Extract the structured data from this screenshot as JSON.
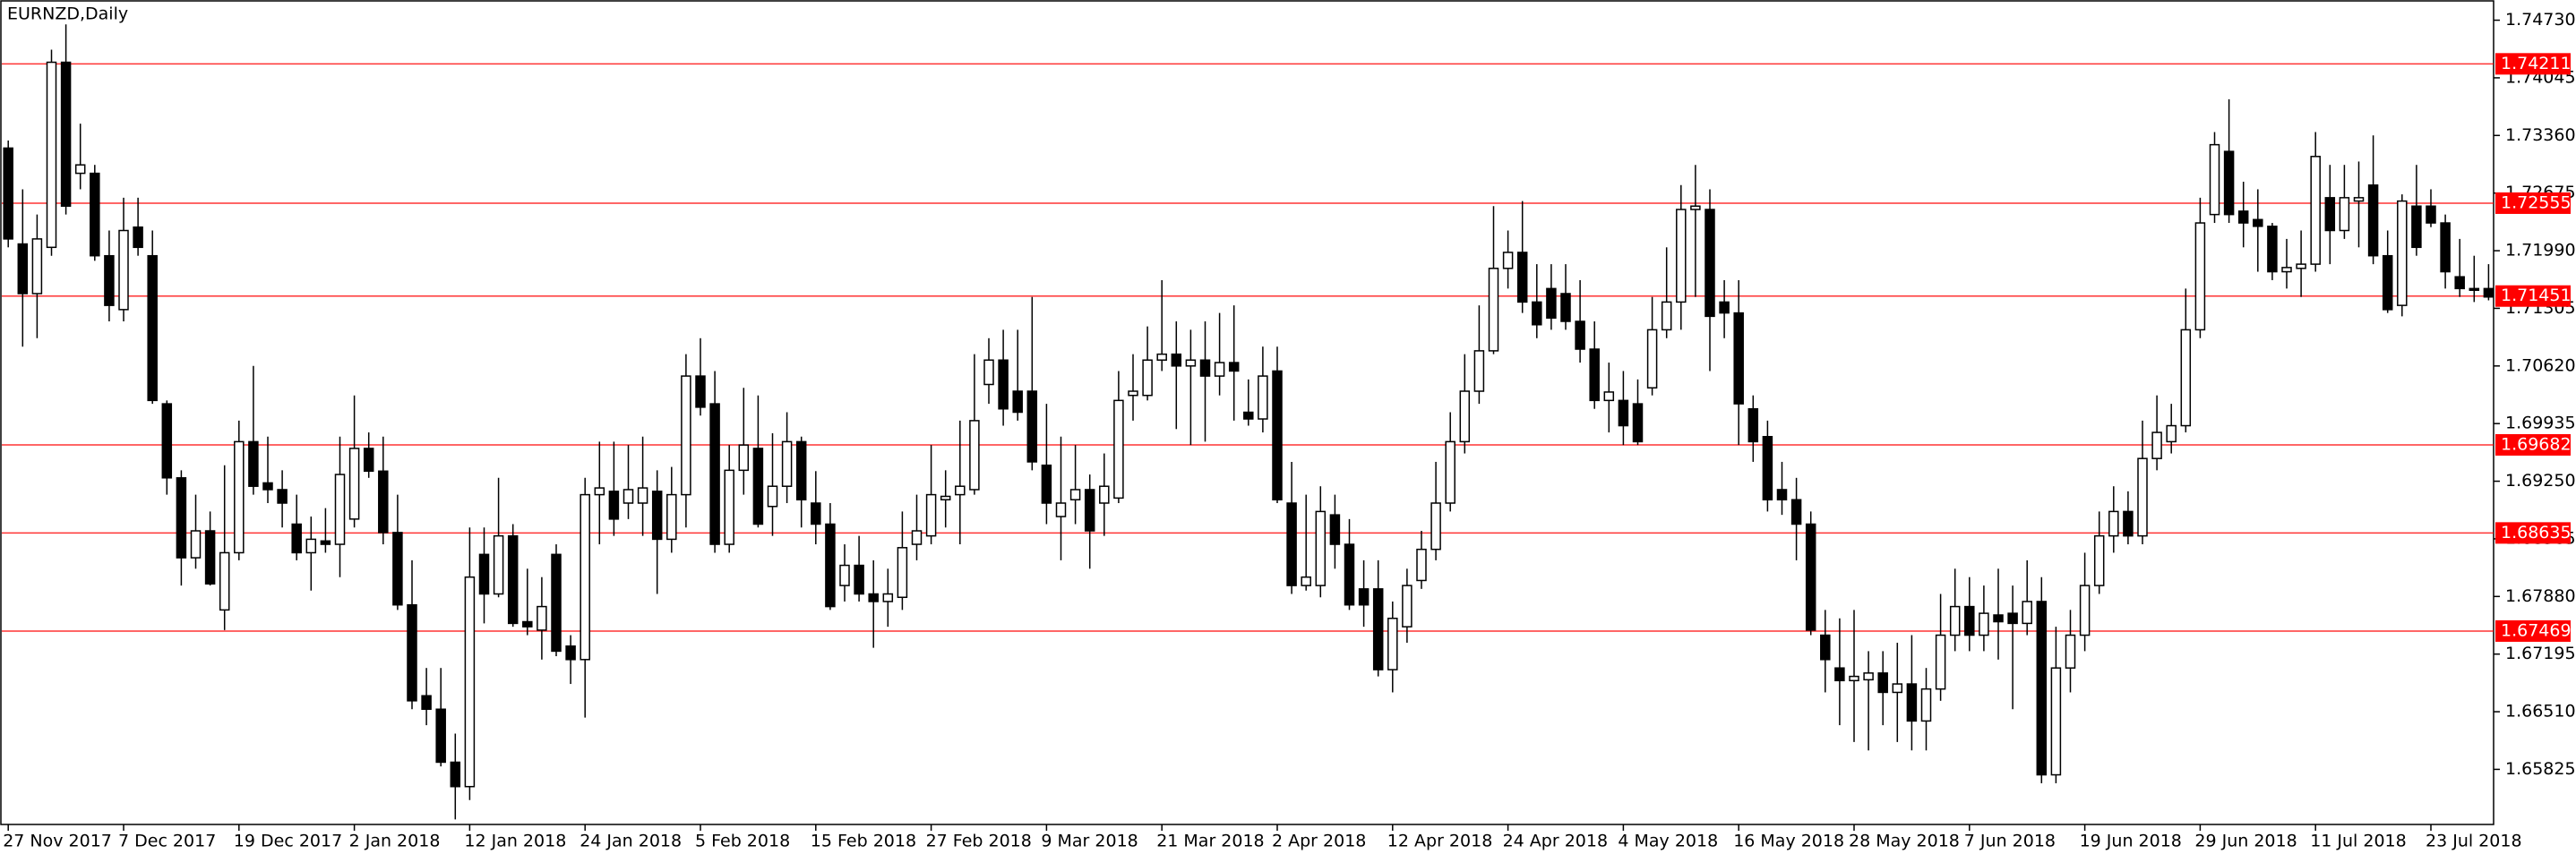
{
  "chart_data": {
    "type": "candlestick",
    "title": "EURNZD,Daily",
    "categories": [
      "27 Nov 2017",
      null,
      null,
      null,
      null,
      null,
      null,
      null,
      "7 Dec 2017",
      null,
      null,
      null,
      null,
      null,
      null,
      null,
      "19 Dec 2017",
      null,
      null,
      null,
      null,
      null,
      null,
      null,
      "2 Jan 2018",
      null,
      null,
      null,
      null,
      null,
      null,
      null,
      "12 Jan 2018",
      null,
      null,
      null,
      null,
      null,
      null,
      null,
      "24 Jan 2018",
      null,
      null,
      null,
      null,
      null,
      null,
      null,
      "5 Feb 2018",
      null,
      null,
      null,
      null,
      null,
      null,
      null,
      "15 Feb 2018",
      null,
      null,
      null,
      null,
      null,
      null,
      null,
      "27 Feb 2018",
      null,
      null,
      null,
      null,
      null,
      null,
      null,
      "9 Mar 2018",
      null,
      null,
      null,
      null,
      null,
      null,
      null,
      "21 Mar 2018",
      null,
      null,
      null,
      null,
      null,
      null,
      null,
      "2 Apr 2018",
      null,
      null,
      null,
      null,
      null,
      null,
      null,
      "12 Apr 2018",
      null,
      null,
      null,
      null,
      null,
      null,
      null,
      "24 Apr 2018",
      null,
      null,
      null,
      null,
      null,
      null,
      null,
      "4 May 2018",
      null,
      null,
      null,
      null,
      null,
      null,
      null,
      "16 May 2018",
      null,
      null,
      null,
      null,
      null,
      null,
      null,
      "28 May 2018",
      null,
      null,
      null,
      null,
      null,
      null,
      null,
      "7 Jun 2018",
      null,
      null,
      null,
      null,
      null,
      null,
      null,
      "19 Jun 2018",
      null,
      null,
      null,
      null,
      null,
      null,
      null,
      "29 Jun 2018",
      null,
      null,
      null,
      null,
      null,
      null,
      null,
      "11 Jul 2018",
      null,
      null,
      null,
      null,
      null,
      null,
      null,
      "23 Jul 2018",
      null,
      null,
      null,
      null
    ],
    "open": [
      1.7321,
      1.7207,
      1.7148,
      1.7203,
      1.7423,
      1.7291,
      1.7291,
      1.7193,
      1.7129,
      1.7227,
      1.7193,
      1.7017,
      1.6929,
      1.6834,
      1.6866,
      1.6772,
      1.684,
      1.6972,
      1.6923,
      1.6915,
      1.6874,
      1.684,
      1.6854,
      1.685,
      1.688,
      1.6964,
      1.6937,
      1.6864,
      1.6778,
      1.667,
      1.6654,
      1.6591,
      1.6562,
      1.6838,
      1.6791,
      1.686,
      1.6758,
      1.6748,
      1.6838,
      1.6729,
      1.6713,
      1.6909,
      1.6913,
      1.6899,
      1.6899,
      1.6913,
      1.6856,
      1.6909,
      1.705,
      1.7017,
      1.685,
      1.6938,
      1.6964,
      1.6895,
      1.6919,
      1.6972,
      1.6899,
      1.6874,
      1.6801,
      1.6825,
      1.6791,
      1.6782,
      1.6787,
      1.685,
      1.686,
      1.6903,
      1.6909,
      1.6915,
      1.704,
      1.7069,
      1.7032,
      1.7032,
      1.6944,
      1.6883,
      1.6903,
      1.6915,
      1.6899,
      1.6905,
      1.7027,
      1.7027,
      1.7069,
      1.7076,
      1.7062,
      1.7069,
      1.705,
      1.7066,
      1.7007,
      1.6999,
      1.7056,
      1.6899,
      1.6801,
      1.6801,
      1.6885,
      1.685,
      1.6797,
      1.6797,
      1.6701,
      1.6752,
      1.6807,
      1.6844,
      1.6899,
      1.6972,
      1.7032,
      1.708,
      1.7178,
      1.7197,
      1.7138,
      1.7154,
      1.7148,
      1.7115,
      1.7082,
      1.7021,
      1.7021,
      1.7017,
      1.7036,
      1.7105,
      1.7138,
      1.7248,
      1.7248,
      1.7138,
      1.7125,
      1.7011,
      1.6978,
      1.6915,
      1.6903,
      1.6874,
      1.6742,
      1.6703,
      1.6688,
      1.6689,
      1.6697,
      1.6674,
      1.6684,
      1.664,
      1.6678,
      1.6742,
      1.6776,
      1.6742,
      1.6766,
      1.6768,
      1.6756,
      1.6782,
      1.6576,
      1.6703,
      1.6742,
      1.6801,
      1.686,
      1.6889,
      1.686,
      1.6952,
      1.6972,
      1.6991,
      1.7105,
      1.7242,
      1.7317,
      1.7246,
      1.7236,
      1.7228,
      1.7174,
      1.7178,
      1.7183,
      1.7262,
      1.7223,
      1.7258,
      1.7277,
      1.7193,
      1.7134,
      1.7252,
      1.7252,
      1.7232,
      1.7168,
      1.7154,
      1.7154
    ],
    "high": [
      1.733,
      1.7272,
      1.7242,
      1.7438,
      1.7468,
      1.735,
      1.7301,
      1.7223,
      1.7262,
      1.7262,
      1.7223,
      1.7021,
      1.6938,
      1.6909,
      1.6889,
      1.6944,
      1.6997,
      1.7062,
      1.6978,
      1.6938,
      1.6909,
      1.6883,
      1.6893,
      1.6978,
      1.7027,
      1.6983,
      1.6978,
      1.6909,
      1.6831,
      1.6703,
      1.6703,
      1.6625,
      1.687,
      1.687,
      1.6929,
      1.6874,
      1.6821,
      1.6811,
      1.685,
      1.6742,
      1.6929,
      1.6972,
      1.6972,
      1.6968,
      1.6978,
      1.6938,
      1.6942,
      1.7076,
      1.7095,
      1.7056,
      1.6968,
      1.7036,
      1.7027,
      1.6982,
      1.7007,
      1.6978,
      1.6937,
      1.6899,
      1.685,
      1.686,
      1.6831,
      1.6821,
      1.6889,
      1.6909,
      1.6968,
      1.6938,
      1.6997,
      1.7076,
      1.7095,
      1.7105,
      1.7105,
      1.7144,
      1.7017,
      1.6978,
      1.6968,
      1.6933,
      1.6958,
      1.7056,
      1.7076,
      1.7109,
      1.7164,
      1.7115,
      1.7105,
      1.7115,
      1.7125,
      1.7134,
      1.7046,
      1.7085,
      1.7085,
      1.6948,
      1.6909,
      1.6919,
      1.6909,
      1.688,
      1.6831,
      1.6831,
      1.6782,
      1.6821,
      1.6866,
      1.6948,
      1.7007,
      1.7076,
      1.7134,
      1.7252,
      1.7223,
      1.7258,
      1.7183,
      1.7183,
      1.7183,
      1.7164,
      1.7115,
      1.7066,
      1.7056,
      1.7046,
      1.7144,
      1.7203,
      1.7277,
      1.7301,
      1.7272,
      1.7164,
      1.7164,
      1.7027,
      1.6997,
      1.6948,
      1.6929,
      1.6889,
      1.6772,
      1.6762,
      1.6772,
      1.6723,
      1.6723,
      1.6733,
      1.6742,
      1.6703,
      1.6791,
      1.6821,
      1.6811,
      1.6801,
      1.6821,
      1.6801,
      1.6831,
      1.6811,
      1.6752,
      1.6772,
      1.684,
      1.6889,
      1.6919,
      1.6913,
      1.6997,
      1.7027,
      1.7017,
      1.7154,
      1.7262,
      1.734,
      1.7379,
      1.7281,
      1.7272,
      1.7232,
      1.7213,
      1.7223,
      1.734,
      1.7301,
      1.7301,
      1.7305,
      1.7336,
      1.7223,
      1.7266,
      1.7301,
      1.7272,
      1.7242,
      1.7213,
      1.7193,
      1.7183
    ],
    "low": [
      1.7203,
      1.7085,
      1.7095,
      1.7193,
      1.7242,
      1.7272,
      1.7187,
      1.7115,
      1.7115,
      1.7193,
      1.7017,
      1.6909,
      1.6801,
      1.6821,
      1.6801,
      1.6748,
      1.6831,
      1.6909,
      1.6899,
      1.687,
      1.6831,
      1.6795,
      1.684,
      1.6811,
      1.687,
      1.6929,
      1.685,
      1.6772,
      1.6654,
      1.6635,
      1.6586,
      1.6523,
      1.6546,
      1.6756,
      1.6787,
      1.6752,
      1.6742,
      1.6713,
      1.6717,
      1.6684,
      1.6644,
      1.685,
      1.686,
      1.688,
      1.686,
      1.6791,
      1.684,
      1.687,
      1.7003,
      1.684,
      1.684,
      1.6909,
      1.687,
      1.686,
      1.6899,
      1.687,
      1.685,
      1.6772,
      1.6782,
      1.6782,
      1.6727,
      1.6752,
      1.6772,
      1.6831,
      1.685,
      1.687,
      1.685,
      1.6909,
      1.7017,
      1.6991,
      1.6997,
      1.6938,
      1.6874,
      1.6831,
      1.6874,
      1.6821,
      1.686,
      1.6899,
      1.6997,
      1.7021,
      1.7056,
      1.6987,
      1.6968,
      1.6972,
      1.7027,
      1.6997,
      1.6991,
      1.6983,
      1.6899,
      1.6791,
      1.6795,
      1.6787,
      1.6821,
      1.6772,
      1.6752,
      1.6693,
      1.6674,
      1.6733,
      1.6797,
      1.6831,
      1.6889,
      1.6958,
      1.7017,
      1.7076,
      1.7154,
      1.7125,
      1.7095,
      1.7105,
      1.7105,
      1.7066,
      1.7011,
      1.6983,
      1.6968,
      1.6968,
      1.7027,
      1.7095,
      1.7105,
      1.7144,
      1.7056,
      1.7095,
      1.6968,
      1.6948,
      1.6889,
      1.6885,
      1.6831,
      1.6742,
      1.6674,
      1.6635,
      1.6615,
      1.6605,
      1.6635,
      1.6615,
      1.6605,
      1.6605,
      1.6664,
      1.6723,
      1.6723,
      1.6723,
      1.6713,
      1.6654,
      1.6742,
      1.6566,
      1.6566,
      1.6674,
      1.6723,
      1.6791,
      1.684,
      1.685,
      1.685,
      1.6938,
      1.6958,
      1.6983,
      1.7095,
      1.7232,
      1.7232,
      1.7203,
      1.7174,
      1.7164,
      1.7154,
      1.7144,
      1.7174,
      1.7183,
      1.7213,
      1.7203,
      1.7183,
      1.7125,
      1.7121,
      1.7193,
      1.7227,
      1.7154,
      1.7144,
      1.7138,
      1.714
    ],
    "close": [
      1.7213,
      1.7148,
      1.7213,
      1.7423,
      1.7252,
      1.7301,
      1.7193,
      1.7134,
      1.7223,
      1.7203,
      1.7021,
      1.6929,
      1.6834,
      1.6866,
      1.6803,
      1.684,
      1.6972,
      1.6919,
      1.6915,
      1.6899,
      1.684,
      1.6856,
      1.685,
      1.6933,
      1.6964,
      1.6937,
      1.6864,
      1.6778,
      1.6664,
      1.6654,
      1.6591,
      1.6562,
      1.6811,
      1.6791,
      1.686,
      1.6756,
      1.6752,
      1.6776,
      1.6723,
      1.6713,
      1.6909,
      1.6917,
      1.688,
      1.6915,
      1.6917,
      1.6856,
      1.6909,
      1.705,
      1.7013,
      1.685,
      1.6938,
      1.6968,
      1.6874,
      1.6919,
      1.6972,
      1.6903,
      1.6874,
      1.6776,
      1.6825,
      1.6791,
      1.6782,
      1.6791,
      1.6846,
      1.6866,
      1.6909,
      1.6907,
      1.6919,
      1.6997,
      1.7069,
      1.7011,
      1.7007,
      1.6948,
      1.6899,
      1.6899,
      1.6915,
      1.6866,
      1.6919,
      1.7021,
      1.7032,
      1.7069,
      1.7076,
      1.7062,
      1.7069,
      1.705,
      1.7066,
      1.7056,
      1.6999,
      1.705,
      1.6903,
      1.6801,
      1.6811,
      1.6889,
      1.685,
      1.6778,
      1.6778,
      1.6701,
      1.6762,
      1.6801,
      1.6844,
      1.6899,
      1.6972,
      1.7032,
      1.708,
      1.7178,
      1.7197,
      1.7138,
      1.7111,
      1.7119,
      1.7115,
      1.7082,
      1.7021,
      1.7031,
      1.6991,
      1.6972,
      1.7105,
      1.7138,
      1.7248,
      1.7252,
      1.7121,
      1.7125,
      1.7017,
      1.6972,
      1.6903,
      1.6903,
      1.6874,
      1.6748,
      1.6713,
      1.6688,
      1.6693,
      1.6697,
      1.6674,
      1.6684,
      1.664,
      1.6678,
      1.6742,
      1.6776,
      1.6742,
      1.6768,
      1.6758,
      1.6756,
      1.6782,
      1.6576,
      1.6703,
      1.6742,
      1.6801,
      1.686,
      1.6889,
      1.686,
      1.6952,
      1.6983,
      1.6991,
      1.7105,
      1.7232,
      1.7325,
      1.7242,
      1.7232,
      1.7228,
      1.7174,
      1.7179,
      1.7183,
      1.7311,
      1.7223,
      1.7262,
      1.7262,
      1.7193,
      1.7129,
      1.7258,
      1.7203,
      1.7232,
      1.7174,
      1.7154,
      1.7152,
      1.7144
    ],
    "ylim": [
      1.6517,
      1.7497
    ],
    "yticks": [
      {
        "value": 1.7473,
        "label": "1.74730"
      },
      1.74045,
      {
        "value": 1.7336,
        "label": "1.73360"
      },
      1.72675,
      {
        "value": 1.7199,
        "label": "1.71990"
      },
      1.71305,
      {
        "value": 1.7062,
        "label": "1.70620"
      },
      1.69935,
      {
        "value": 1.6925,
        "label": "1.69250"
      },
      1.68565,
      {
        "value": 1.6788,
        "label": "1.67880"
      },
      1.67195,
      {
        "value": 1.6651,
        "label": "1.66510"
      },
      1.65825
    ],
    "levels": [
      1.74211,
      1.72555,
      1.71451,
      1.69682,
      1.68635,
      1.67469
    ],
    "level_color": "#ff0000",
    "up_color": "#ffffff",
    "down_color": "#000000",
    "grid": false
  }
}
